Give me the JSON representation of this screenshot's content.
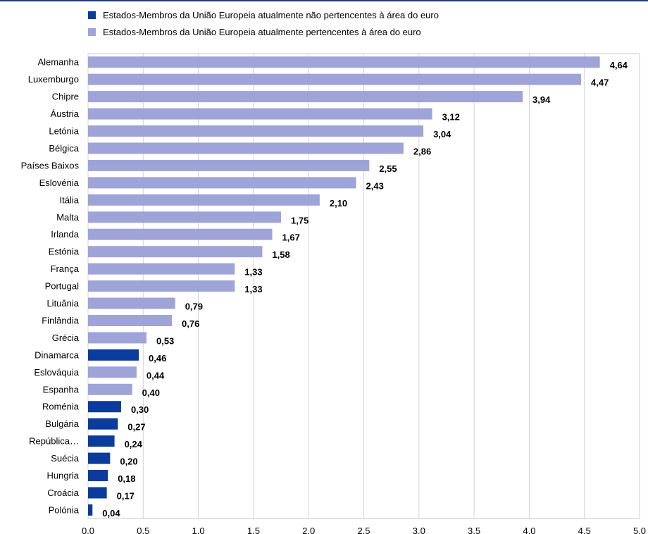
{
  "chart_data": {
    "type": "bar",
    "orientation": "horizontal",
    "legend": [
      {
        "label": "Estados-Membros da União Europeia atualmente não pertencentes à área do euro",
        "color": "#0b3b9c"
      },
      {
        "label": "Estados-Membros da União Europeia atualmente pertencentes à área do euro",
        "color": "#9ea4d8"
      }
    ],
    "categories": [
      "Alemanha",
      "Luxemburgo",
      "Chipre",
      "Áustria",
      "Letónia",
      "Bélgica",
      "Países Baixos",
      "Eslovénia",
      "Itália",
      "Malta",
      "Irlanda",
      "Estónia",
      "França",
      "Portugal",
      "Lituânia",
      "Finlândia",
      "Grécia",
      "Dinamarca",
      "Eslováquia",
      "Espanha",
      "Roménia",
      "Bulgária",
      "República…",
      "Suécia",
      "Hungria",
      "Croácia",
      "Polónia"
    ],
    "values": [
      4.64,
      4.47,
      3.94,
      3.12,
      3.04,
      2.86,
      2.55,
      2.43,
      2.1,
      1.75,
      1.67,
      1.58,
      1.33,
      1.33,
      0.79,
      0.76,
      0.53,
      0.46,
      0.44,
      0.4,
      0.3,
      0.27,
      0.24,
      0.2,
      0.18,
      0.17,
      0.04
    ],
    "value_labels": [
      "4,64",
      "4,47",
      "3,94",
      "3,12",
      "3,04",
      "2,86",
      "2,55",
      "2,43",
      "2,10",
      "1,75",
      "1,67",
      "1,58",
      "1,33",
      "1,33",
      "0,79",
      "0,76",
      "0,53",
      "0,46",
      "0,44",
      "0,40",
      "0,30",
      "0,27",
      "0,24",
      "0,20",
      "0,18",
      "0,17",
      "0,04"
    ],
    "euro_area": [
      true,
      true,
      true,
      true,
      true,
      true,
      true,
      true,
      true,
      true,
      true,
      true,
      true,
      true,
      true,
      true,
      true,
      false,
      true,
      true,
      false,
      false,
      false,
      false,
      false,
      false,
      false
    ],
    "xlim": [
      0,
      5
    ],
    "xticks": [
      0,
      0.5,
      1,
      1.5,
      2,
      2.5,
      3,
      3.5,
      4,
      4.5,
      5
    ],
    "xtick_labels": [
      "0,0",
      "0,5",
      "1,0",
      "1,5",
      "2,0",
      "2,5",
      "3,0",
      "3,5",
      "4,0",
      "4,5",
      "5,0"
    ],
    "grid": true,
    "legend_position": "top"
  }
}
